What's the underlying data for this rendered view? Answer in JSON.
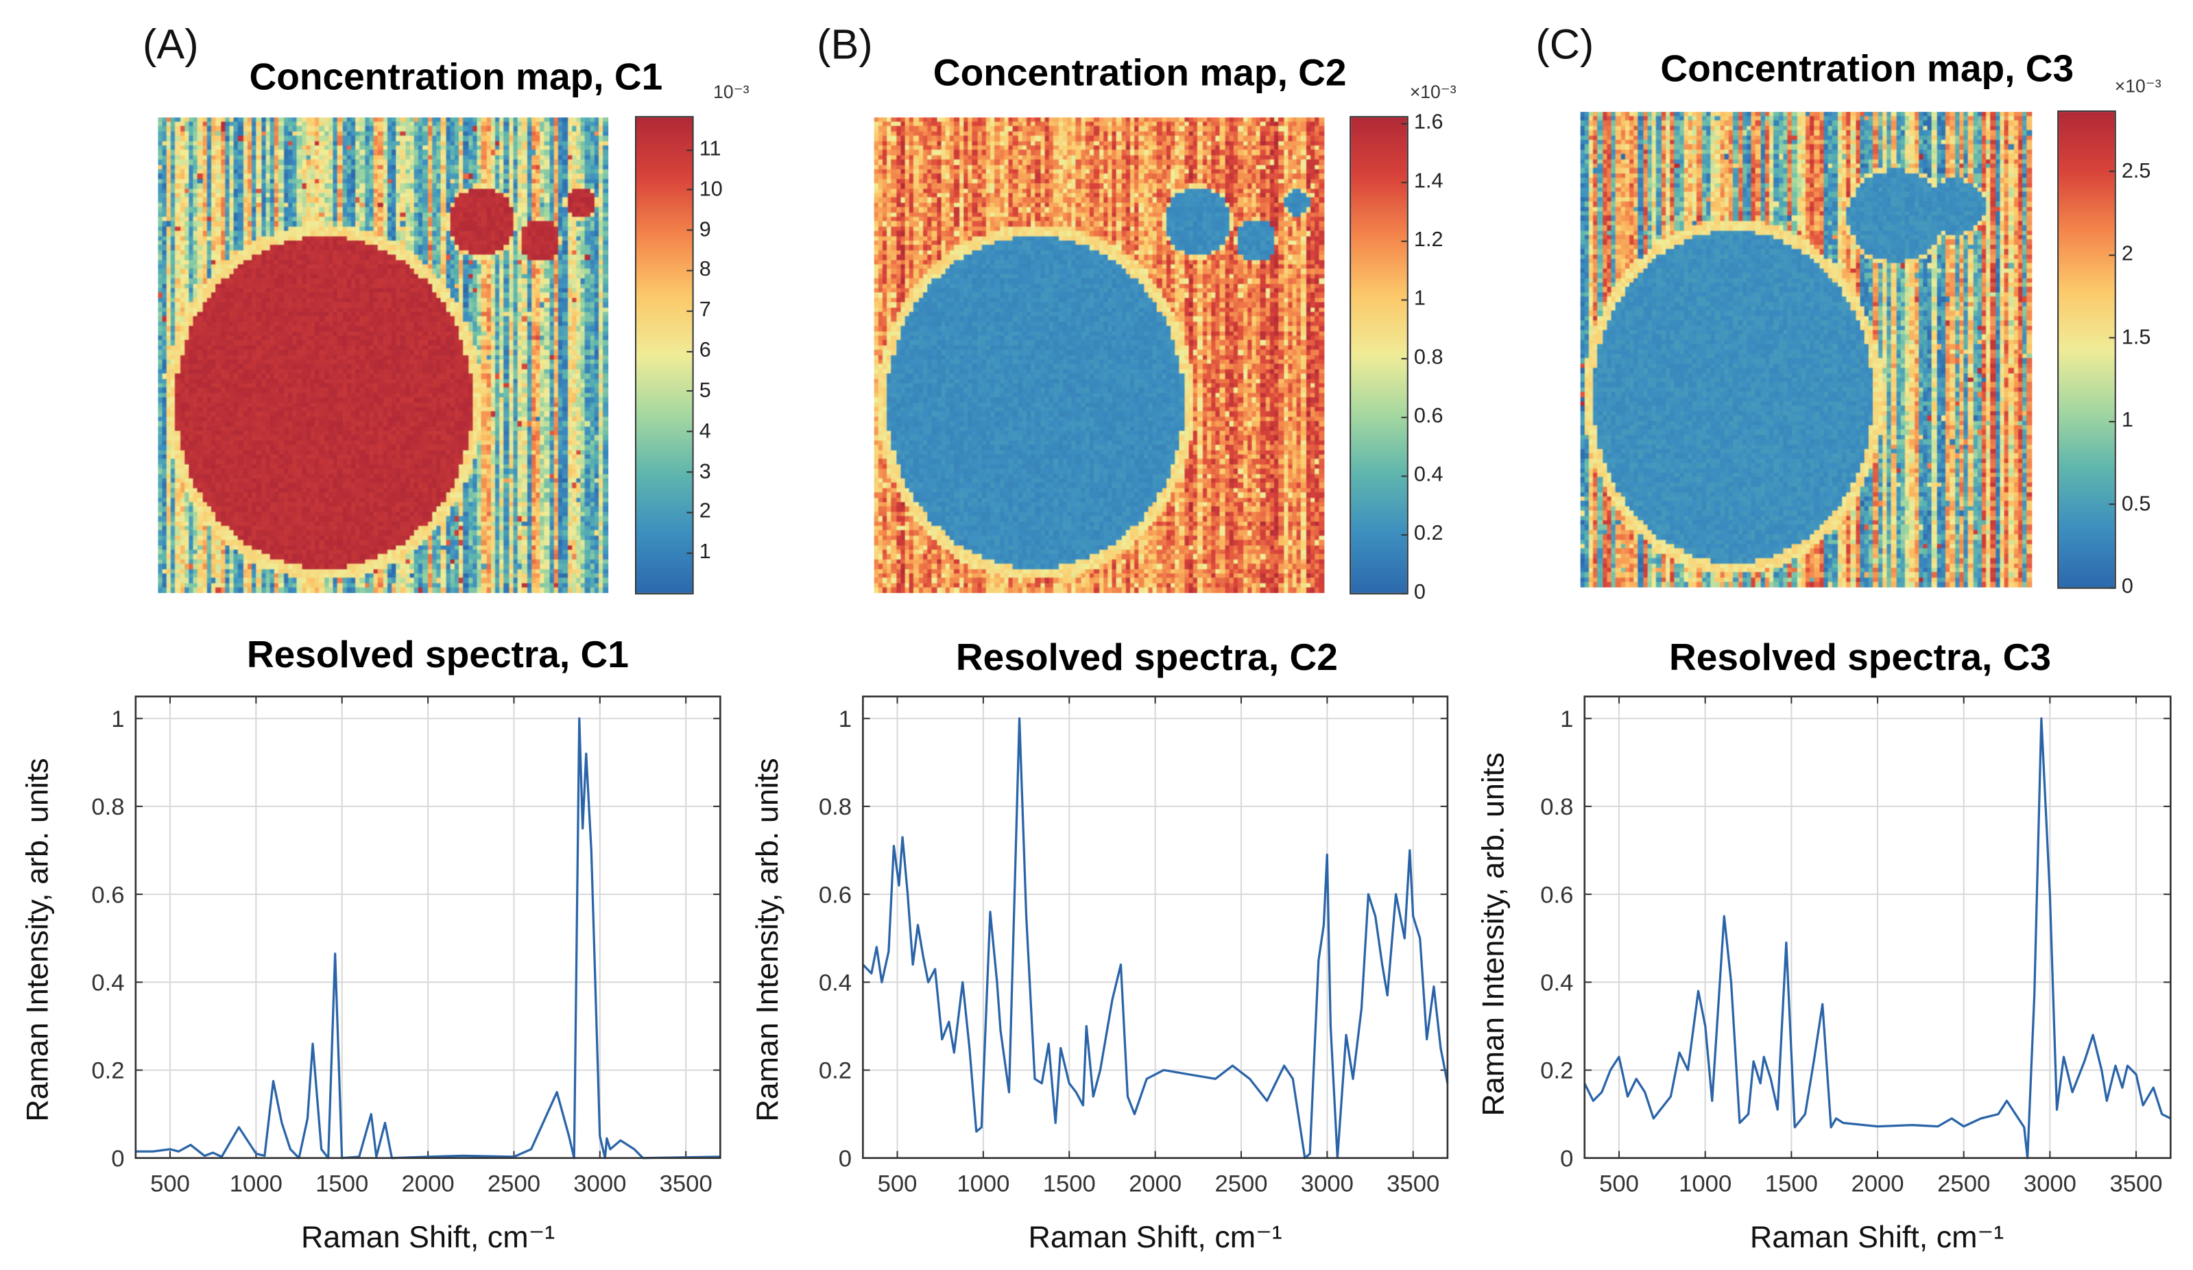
{
  "colors": {
    "line": "#2a64a8",
    "grid": "#d8d8d8",
    "axis": "#333333"
  },
  "colormap": [
    "#2c6aad",
    "#3d8fc0",
    "#5fb6ad",
    "#a6d8a0",
    "#f0ec98",
    "#fcc96a",
    "#f4874c",
    "#d9443a",
    "#b22a37"
  ],
  "panels": [
    {
      "letter": "(A)",
      "map_title": "Concentration map, C1",
      "cb_exponent": "10⁻³",
      "spec_title": "Resolved spectra, C1"
    },
    {
      "letter": "(B)",
      "map_title": "Concentration map, C2",
      "cb_exponent": "×10⁻³",
      "spec_title": "Resolved spectra, C2"
    },
    {
      "letter": "(C)",
      "map_title": "Concentration map, C3",
      "cb_exponent": "×10⁻³",
      "spec_title": "Resolved spectra, C3"
    }
  ],
  "chart_data": [
    {
      "type": "heatmap",
      "title": "Concentration map, C1",
      "colorbar": {
        "range": [
          0,
          11.8
        ],
        "ticks": [
          "1",
          "2",
          "3",
          "4",
          "5",
          "6",
          "7",
          "8",
          "9",
          "10",
          "11"
        ],
        "tick_values": [
          1,
          2,
          3,
          4,
          5,
          6,
          7,
          8,
          9,
          10,
          11
        ],
        "exponent": "10^-3"
      },
      "description_level": {
        "particles": "high",
        "background": "mixed low/mid"
      }
    },
    {
      "type": "heatmap",
      "title": "Concentration map, C2",
      "colorbar": {
        "range": [
          0,
          1.62
        ],
        "ticks": [
          "0",
          "0.2",
          "0.4",
          "0.6",
          "0.8",
          "1",
          "1.2",
          "1.4",
          "1.6"
        ],
        "tick_values": [
          0,
          0.2,
          0.4,
          0.6,
          0.8,
          1,
          1.2,
          1.4,
          1.6
        ],
        "exponent": "x10^-3"
      },
      "description_level": {
        "particles": "low",
        "background": "high"
      }
    },
    {
      "type": "heatmap",
      "title": "Concentration map, C3",
      "colorbar": {
        "range": [
          0,
          2.86
        ],
        "ticks": [
          "0",
          "0.5",
          "1",
          "1.5",
          "2",
          "2.5"
        ],
        "tick_values": [
          0,
          0.5,
          1,
          1.5,
          2,
          2.5
        ],
        "exponent": "x10^-3"
      },
      "description_level": {
        "particles": "low",
        "background": "mixed"
      }
    },
    {
      "type": "line",
      "title": "Resolved spectra, C1",
      "xlabel": "Raman Shift, cm⁻¹",
      "ylabel": "Raman Intensity, arb. units",
      "xlim": [
        300,
        3700
      ],
      "ylim": [
        0,
        1.05
      ],
      "grid": true,
      "xticks": [
        500,
        1000,
        1500,
        2000,
        2500,
        3000,
        3500
      ],
      "yticks": [
        0,
        0.2,
        0.4,
        0.6,
        0.8,
        1
      ],
      "ytick_labels": [
        "0",
        "0.2",
        "0.4",
        "0.6",
        "0.8",
        "1"
      ],
      "series": [
        {
          "name": "C1",
          "x": [
            300,
            400,
            500,
            550,
            620,
            700,
            750,
            800,
            900,
            1000,
            1050,
            1100,
            1150,
            1200,
            1250,
            1300,
            1330,
            1380,
            1420,
            1460,
            1500,
            1600,
            1670,
            1700,
            1750,
            1790,
            2000,
            2200,
            2500,
            2600,
            2750,
            2820,
            2850,
            2880,
            2900,
            2920,
            2950,
            3000,
            3030,
            3040,
            3060,
            3120,
            3200,
            3250,
            3700
          ],
          "y": [
            0.015,
            0.015,
            0.02,
            0.015,
            0.03,
            0.005,
            0.012,
            0.003,
            0.07,
            0.01,
            0.005,
            0.175,
            0.08,
            0.02,
            0.0,
            0.09,
            0.26,
            0.02,
            0.0,
            0.465,
            0.0,
            0.003,
            0.1,
            0.003,
            0.08,
            0.0,
            0.003,
            0.005,
            0.003,
            0.02,
            0.15,
            0.05,
            0.0,
            1.0,
            0.75,
            0.92,
            0.7,
            0.05,
            0.0,
            0.045,
            0.02,
            0.04,
            0.02,
            0.0,
            0.003
          ]
        }
      ]
    },
    {
      "type": "line",
      "title": "Resolved spectra, C2",
      "xlabel": "Raman Shift, cm⁻¹",
      "ylabel": "Raman Intensity, arb. units",
      "xlim": [
        300,
        3700
      ],
      "ylim": [
        0,
        1.05
      ],
      "grid": true,
      "xticks": [
        500,
        1000,
        1500,
        2000,
        2500,
        3000,
        3500
      ],
      "yticks": [
        0,
        0.2,
        0.4,
        0.6,
        0.8,
        1
      ],
      "ytick_labels": [
        "0",
        "0.2",
        "0.4",
        "0.6",
        "0.8",
        "1"
      ],
      "series": [
        {
          "name": "C2",
          "x": [
            300,
            350,
            380,
            410,
            450,
            480,
            510,
            530,
            560,
            590,
            620,
            650,
            680,
            720,
            760,
            800,
            830,
            880,
            920,
            960,
            990,
            1040,
            1080,
            1100,
            1150,
            1210,
            1250,
            1300,
            1340,
            1380,
            1420,
            1450,
            1500,
            1540,
            1580,
            1600,
            1640,
            1680,
            1750,
            1800,
            1840,
            1880,
            1950,
            2050,
            2200,
            2350,
            2450,
            2550,
            2650,
            2750,
            2800,
            2870,
            2900,
            2950,
            2980,
            3000,
            3020,
            3060,
            3110,
            3150,
            3200,
            3240,
            3280,
            3320,
            3350,
            3400,
            3450,
            3480,
            3500,
            3540,
            3580,
            3620,
            3660,
            3700
          ],
          "y": [
            0.44,
            0.42,
            0.48,
            0.4,
            0.47,
            0.71,
            0.62,
            0.73,
            0.6,
            0.44,
            0.53,
            0.46,
            0.4,
            0.43,
            0.27,
            0.31,
            0.24,
            0.4,
            0.25,
            0.06,
            0.07,
            0.56,
            0.4,
            0.29,
            0.15,
            1.0,
            0.55,
            0.18,
            0.17,
            0.26,
            0.08,
            0.25,
            0.17,
            0.15,
            0.12,
            0.3,
            0.14,
            0.2,
            0.36,
            0.44,
            0.14,
            0.1,
            0.18,
            0.2,
            0.19,
            0.18,
            0.21,
            0.18,
            0.13,
            0.21,
            0.18,
            0.0,
            0.01,
            0.45,
            0.53,
            0.69,
            0.3,
            0.0,
            0.28,
            0.18,
            0.34,
            0.6,
            0.55,
            0.44,
            0.37,
            0.6,
            0.5,
            0.7,
            0.55,
            0.5,
            0.27,
            0.39,
            0.25,
            0.17
          ]
        }
      ]
    },
    {
      "type": "line",
      "title": "Resolved spectra, C3",
      "xlabel": "Raman Shift, cm⁻¹",
      "ylabel": "Raman Intensity, arb. units",
      "xlim": [
        300,
        3700
      ],
      "ylim": [
        0,
        1.05
      ],
      "grid": true,
      "xticks": [
        500,
        1000,
        1500,
        2000,
        2500,
        3000,
        3500
      ],
      "yticks": [
        0,
        0.2,
        0.4,
        0.6,
        0.8,
        1
      ],
      "ytick_labels": [
        "0",
        "0.2",
        "0.4",
        "0.6",
        "0.8",
        "1"
      ],
      "series": [
        {
          "name": "C3",
          "x": [
            300,
            350,
            400,
            450,
            500,
            550,
            600,
            650,
            700,
            800,
            850,
            900,
            960,
            1000,
            1040,
            1110,
            1150,
            1200,
            1250,
            1280,
            1320,
            1340,
            1380,
            1420,
            1470,
            1520,
            1580,
            1630,
            1680,
            1730,
            1760,
            1800,
            2000,
            2200,
            2350,
            2430,
            2500,
            2600,
            2700,
            2750,
            2800,
            2850,
            2870,
            2910,
            2950,
            3000,
            3040,
            3080,
            3130,
            3200,
            3250,
            3300,
            3330,
            3380,
            3420,
            3450,
            3500,
            3540,
            3600,
            3650,
            3700
          ],
          "y": [
            0.17,
            0.13,
            0.15,
            0.2,
            0.23,
            0.14,
            0.18,
            0.15,
            0.09,
            0.14,
            0.24,
            0.2,
            0.38,
            0.3,
            0.13,
            0.55,
            0.4,
            0.08,
            0.1,
            0.22,
            0.17,
            0.23,
            0.18,
            0.11,
            0.49,
            0.07,
            0.1,
            0.22,
            0.35,
            0.07,
            0.09,
            0.08,
            0.072,
            0.075,
            0.072,
            0.09,
            0.072,
            0.09,
            0.1,
            0.13,
            0.1,
            0.07,
            0.0,
            0.37,
            1.0,
            0.6,
            0.11,
            0.23,
            0.15,
            0.22,
            0.28,
            0.2,
            0.13,
            0.21,
            0.16,
            0.21,
            0.19,
            0.12,
            0.16,
            0.1,
            0.09
          ]
        }
      ]
    }
  ]
}
